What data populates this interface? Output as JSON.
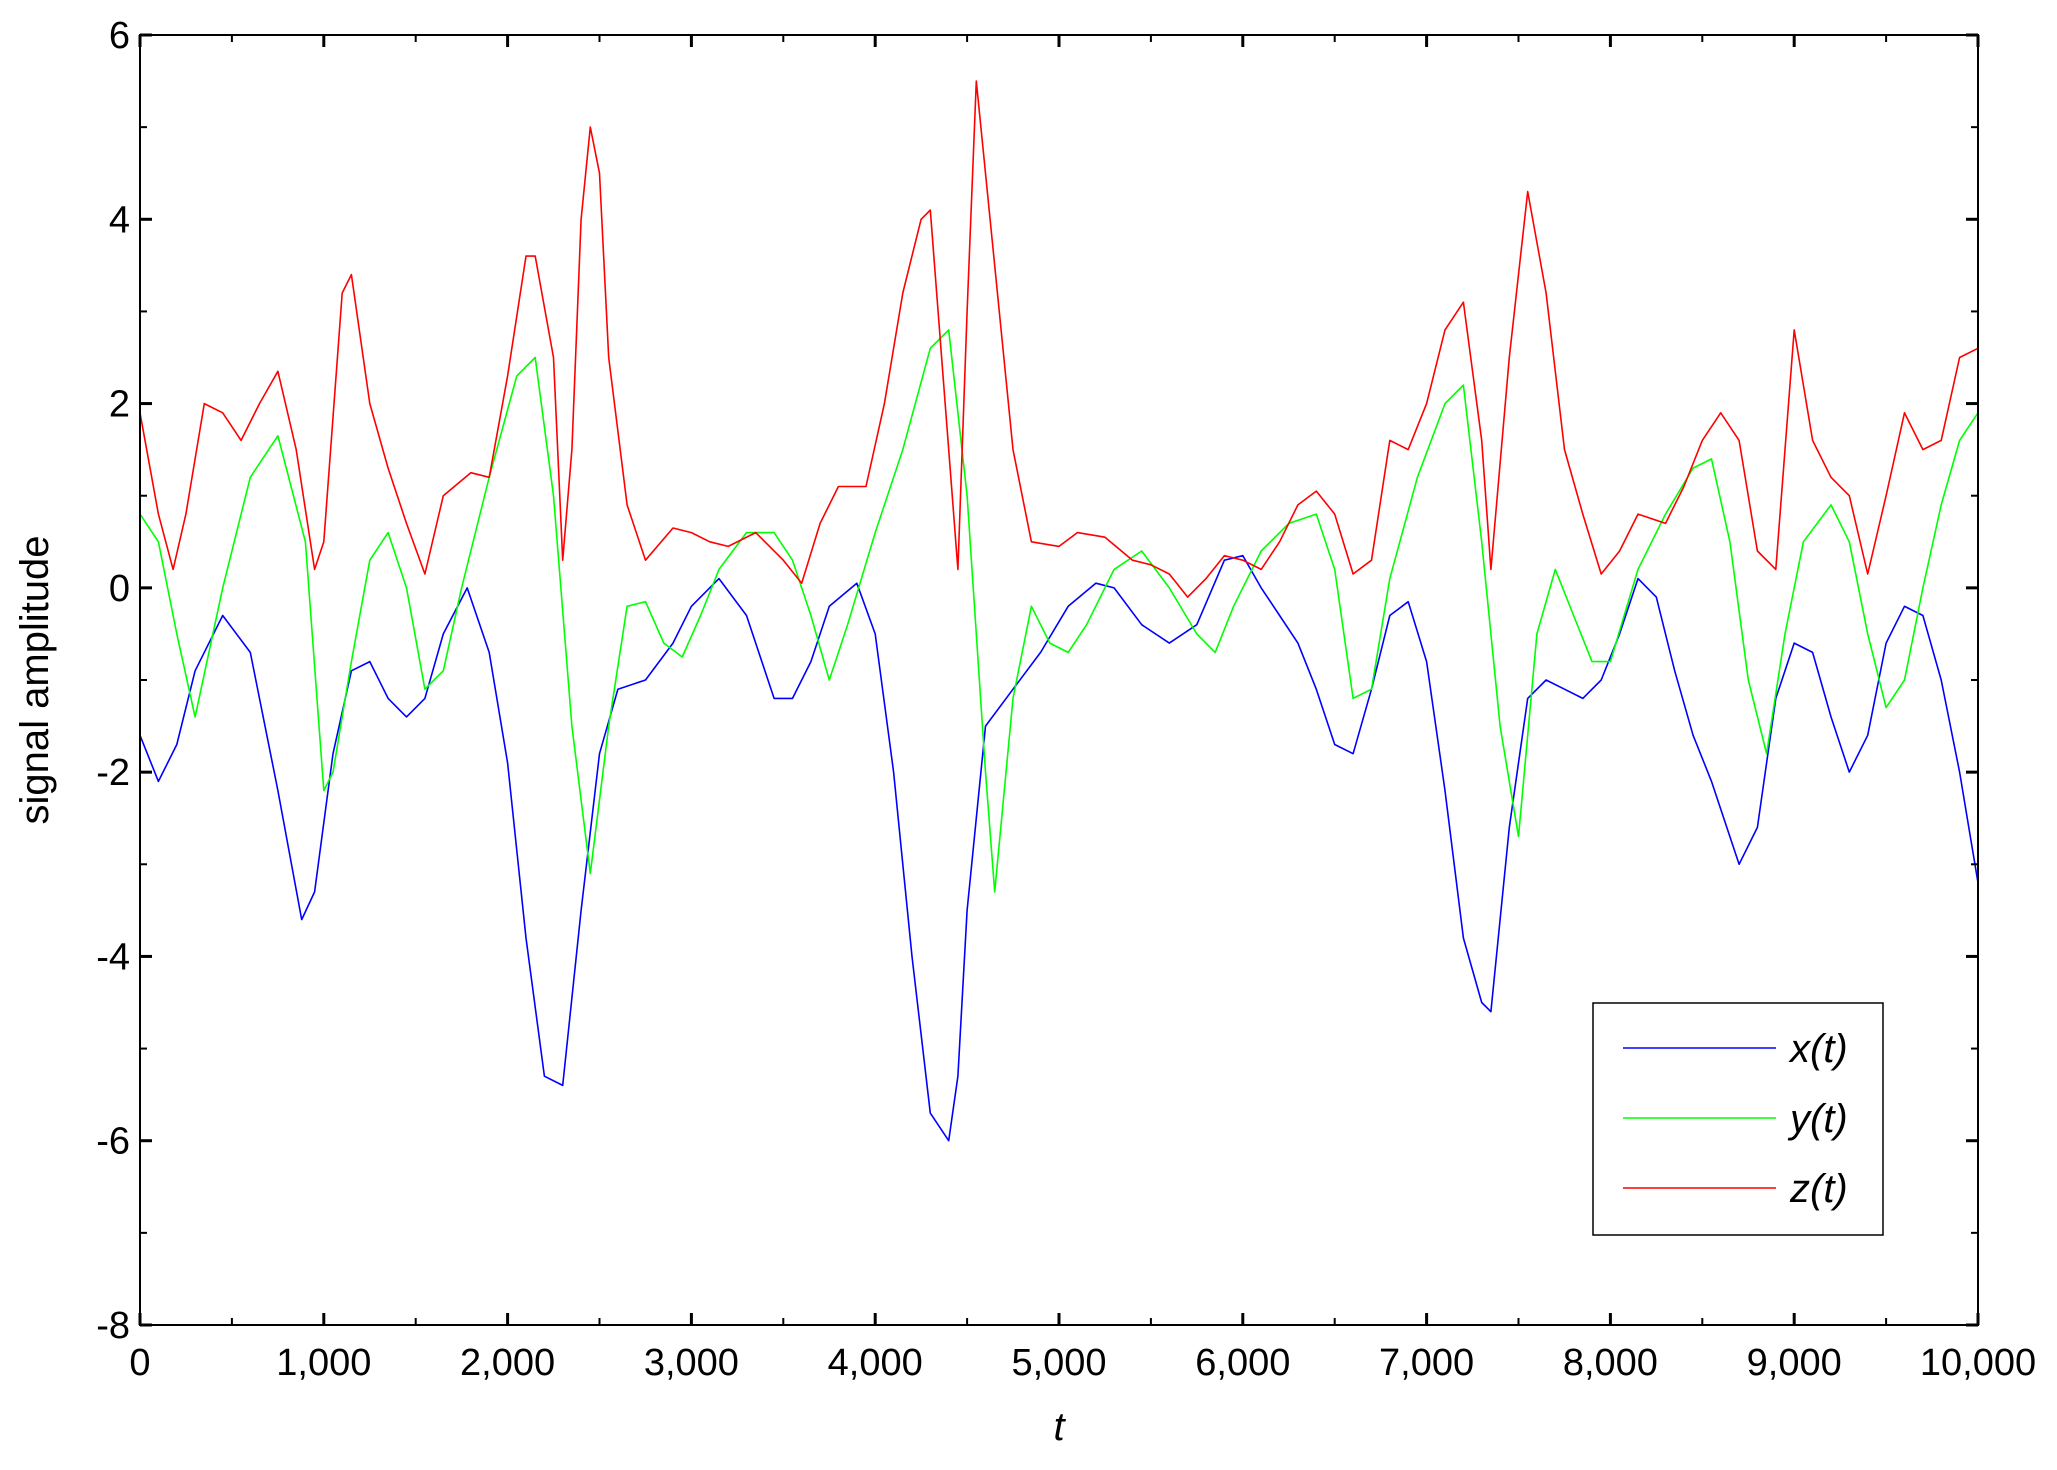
{
  "chart_data": {
    "type": "line",
    "xlabel": "t",
    "ylabel": "signal amplitude",
    "xlim": [
      0,
      10000
    ],
    "ylim": [
      -8,
      6
    ],
    "xticks": [
      0,
      1000,
      2000,
      3000,
      4000,
      5000,
      6000,
      7000,
      8000,
      9000,
      10000
    ],
    "xtick_labels": [
      "0",
      "1,000",
      "2,000",
      "3,000",
      "4,000",
      "5,000",
      "6,000",
      "7,000",
      "8,000",
      "9,000",
      "10,000"
    ],
    "yticks": [
      -8,
      -6,
      -4,
      -2,
      0,
      2,
      4,
      6
    ],
    "ytick_labels": [
      "-8",
      "-6",
      "-4",
      "-2",
      "0",
      "2",
      "4",
      "6"
    ],
    "grid": false,
    "legend_position": "bottom-right",
    "series": [
      {
        "name": "x(t)",
        "color": "#0000ff",
        "x": [
          0,
          100,
          200,
          300,
          450,
          600,
          750,
          880,
          950,
          1050,
          1150,
          1250,
          1350,
          1450,
          1550,
          1650,
          1780,
          1900,
          2000,
          2100,
          2200,
          2300,
          2400,
          2500,
          2600,
          2750,
          2900,
          3000,
          3150,
          3300,
          3450,
          3550,
          3650,
          3750,
          3900,
          4000,
          4100,
          4200,
          4300,
          4400,
          4450,
          4500,
          4600,
          4750,
          4900,
          5050,
          5200,
          5300,
          5450,
          5600,
          5750,
          5900,
          6000,
          6100,
          6200,
          6300,
          6400,
          6500,
          6600,
          6700,
          6800,
          6900,
          7000,
          7100,
          7200,
          7300,
          7350,
          7450,
          7550,
          7650,
          7750,
          7850,
          7950,
          8050,
          8150,
          8250,
          8350,
          8450,
          8550,
          8700,
          8800,
          8900,
          9000,
          9100,
          9200,
          9300,
          9400,
          9500,
          9600,
          9700,
          9800,
          9900,
          10000
        ],
        "values": [
          -1.6,
          -2.1,
          -1.7,
          -0.9,
          -0.3,
          -0.7,
          -2.2,
          -3.6,
          -3.3,
          -1.8,
          -0.9,
          -0.8,
          -1.2,
          -1.4,
          -1.2,
          -0.5,
          0.0,
          -0.7,
          -1.9,
          -3.8,
          -5.3,
          -5.4,
          -3.5,
          -1.8,
          -1.1,
          -1.0,
          -0.6,
          -0.2,
          0.1,
          -0.3,
          -1.2,
          -1.2,
          -0.8,
          -0.2,
          0.05,
          -0.5,
          -2.0,
          -4.0,
          -5.7,
          -6.0,
          -5.3,
          -3.5,
          -1.5,
          -1.1,
          -0.7,
          -0.2,
          0.05,
          0.0,
          -0.4,
          -0.6,
          -0.4,
          0.3,
          0.35,
          0.0,
          -0.3,
          -0.6,
          -1.1,
          -1.7,
          -1.8,
          -1.1,
          -0.3,
          -0.15,
          -0.8,
          -2.2,
          -3.8,
          -4.5,
          -4.6,
          -2.6,
          -1.2,
          -1.0,
          -1.1,
          -1.2,
          -1.0,
          -0.5,
          0.1,
          -0.1,
          -0.9,
          -1.6,
          -2.1,
          -3.0,
          -2.6,
          -1.2,
          -0.6,
          -0.7,
          -1.4,
          -2.0,
          -1.6,
          -0.6,
          -0.2,
          -0.3,
          -1.0,
          -2.0,
          -3.2
        ]
      },
      {
        "name": "y(t)",
        "color": "#00ff00",
        "x": [
          0,
          100,
          200,
          300,
          450,
          600,
          750,
          900,
          1000,
          1050,
          1150,
          1250,
          1350,
          1450,
          1550,
          1650,
          1750,
          1900,
          2050,
          2150,
          2250,
          2350,
          2450,
          2550,
          2650,
          2750,
          2850,
          2950,
          3050,
          3150,
          3300,
          3450,
          3550,
          3650,
          3750,
          3850,
          4000,
          4150,
          4300,
          4400,
          4500,
          4600,
          4650,
          4750,
          4850,
          4950,
          5050,
          5150,
          5300,
          5450,
          5600,
          5750,
          5850,
          5950,
          6100,
          6250,
          6400,
          6500,
          6600,
          6700,
          6800,
          6950,
          7100,
          7200,
          7300,
          7400,
          7500,
          7600,
          7700,
          7800,
          7900,
          8000,
          8150,
          8300,
          8450,
          8550,
          8650,
          8750,
          8850,
          8950,
          9050,
          9200,
          9300,
          9400,
          9500,
          9600,
          9700,
          9800,
          9900,
          10000
        ],
        "values": [
          0.8,
          0.5,
          -0.5,
          -1.4,
          0.0,
          1.2,
          1.65,
          0.5,
          -2.2,
          -2.0,
          -0.8,
          0.3,
          0.6,
          0.0,
          -1.1,
          -0.9,
          0.0,
          1.2,
          2.3,
          2.5,
          1.0,
          -1.5,
          -3.1,
          -1.5,
          -0.2,
          -0.15,
          -0.6,
          -0.75,
          -0.3,
          0.2,
          0.6,
          0.6,
          0.3,
          -0.3,
          -1.0,
          -0.4,
          0.6,
          1.5,
          2.6,
          2.8,
          1.0,
          -2.0,
          -3.3,
          -1.2,
          -0.2,
          -0.6,
          -0.7,
          -0.4,
          0.2,
          0.4,
          0.0,
          -0.5,
          -0.7,
          -0.2,
          0.4,
          0.7,
          0.8,
          0.2,
          -1.2,
          -1.1,
          0.1,
          1.2,
          2.0,
          2.2,
          0.5,
          -1.5,
          -2.7,
          -0.5,
          0.2,
          -0.3,
          -0.8,
          -0.8,
          0.2,
          0.8,
          1.3,
          1.4,
          0.5,
          -1.0,
          -1.8,
          -0.5,
          0.5,
          0.9,
          0.5,
          -0.5,
          -1.3,
          -1.0,
          0.0,
          0.9,
          1.6,
          1.9
        ]
      },
      {
        "name": "z(t)",
        "color": "#ff0000",
        "x": [
          0,
          100,
          180,
          250,
          350,
          450,
          550,
          650,
          750,
          850,
          950,
          1000,
          1100,
          1150,
          1250,
          1350,
          1450,
          1550,
          1650,
          1800,
          1900,
          2000,
          2100,
          2150,
          2250,
          2300,
          2350,
          2400,
          2450,
          2500,
          2550,
          2650,
          2750,
          2900,
          3000,
          3100,
          3200,
          3350,
          3500,
          3600,
          3700,
          3800,
          3950,
          4050,
          4150,
          4250,
          4300,
          4400,
          4450,
          4500,
          4550,
          4650,
          4750,
          4850,
          5000,
          5100,
          5250,
          5400,
          5500,
          5600,
          5700,
          5800,
          5900,
          6000,
          6100,
          6200,
          6300,
          6400,
          6500,
          6600,
          6700,
          6800,
          6900,
          7000,
          7100,
          7200,
          7300,
          7350,
          7450,
          7550,
          7650,
          7750,
          7850,
          7950,
          8050,
          8150,
          8300,
          8400,
          8500,
          8600,
          8700,
          8800,
          8900,
          9000,
          9100,
          9200,
          9300,
          9400,
          9500,
          9600,
          9700,
          9800,
          9900,
          10000
        ],
        "values": [
          1.9,
          0.8,
          0.2,
          0.8,
          2.0,
          1.9,
          1.6,
          2.0,
          2.35,
          1.5,
          0.2,
          0.5,
          3.2,
          3.4,
          2.0,
          1.3,
          0.7,
          0.15,
          1.0,
          1.25,
          1.2,
          2.3,
          3.6,
          3.6,
          2.5,
          0.3,
          1.5,
          4.0,
          5.0,
          4.5,
          2.5,
          0.9,
          0.3,
          0.65,
          0.6,
          0.5,
          0.45,
          0.6,
          0.3,
          0.05,
          0.7,
          1.1,
          1.1,
          2.0,
          3.2,
          4.0,
          4.1,
          1.5,
          0.2,
          3.0,
          5.5,
          3.5,
          1.5,
          0.5,
          0.45,
          0.6,
          0.55,
          0.3,
          0.25,
          0.15,
          -0.1,
          0.1,
          0.35,
          0.3,
          0.2,
          0.5,
          0.9,
          1.05,
          0.8,
          0.15,
          0.3,
          1.6,
          1.5,
          2.0,
          2.8,
          3.1,
          1.6,
          0.2,
          2.5,
          4.3,
          3.2,
          1.5,
          0.8,
          0.15,
          0.4,
          0.8,
          0.7,
          1.1,
          1.6,
          1.9,
          1.6,
          0.4,
          0.2,
          2.8,
          1.6,
          1.2,
          1.0,
          0.15,
          1.0,
          1.9,
          1.5,
          1.6,
          2.5,
          2.6
        ]
      }
    ]
  }
}
